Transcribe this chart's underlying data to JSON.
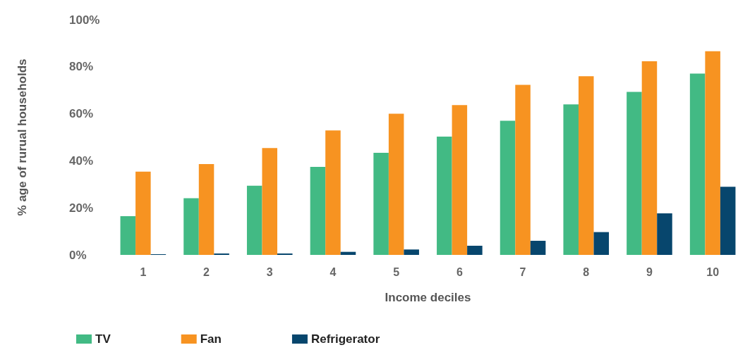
{
  "chart_data": {
    "type": "bar",
    "xlabel": "Income deciles",
    "ylabel": "% age of rurual households",
    "categories": [
      "1",
      "2",
      "3",
      "4",
      "5",
      "6",
      "7",
      "8",
      "9",
      "10"
    ],
    "series": [
      {
        "name": "TV",
        "color": "#42ba84",
        "values": [
          16.5,
          24.1,
          29.4,
          37.4,
          43.4,
          50.3,
          57,
          64,
          69.3,
          77.1
        ]
      },
      {
        "name": "Fan",
        "color": "#f79321",
        "values": [
          35.4,
          38.6,
          45.4,
          52.9,
          60,
          63.7,
          72.3,
          76,
          82.3,
          86.6
        ]
      },
      {
        "name": "Refrigerator",
        "color": "#07466d",
        "values": [
          0.3,
          0.6,
          0.6,
          1.3,
          2.3,
          3.9,
          6,
          9.7,
          17.7,
          29
        ]
      }
    ],
    "ylim": [
      0,
      100
    ],
    "yticks": [
      {
        "value": 0,
        "label": "0%"
      },
      {
        "value": 20,
        "label": "20%"
      },
      {
        "value": 40,
        "label": "40%"
      },
      {
        "value": 60,
        "label": "60%"
      },
      {
        "value": 80,
        "label": "80%"
      },
      {
        "value": 100,
        "label": "100%"
      }
    ],
    "grid": false,
    "legend": "bottom left"
  }
}
